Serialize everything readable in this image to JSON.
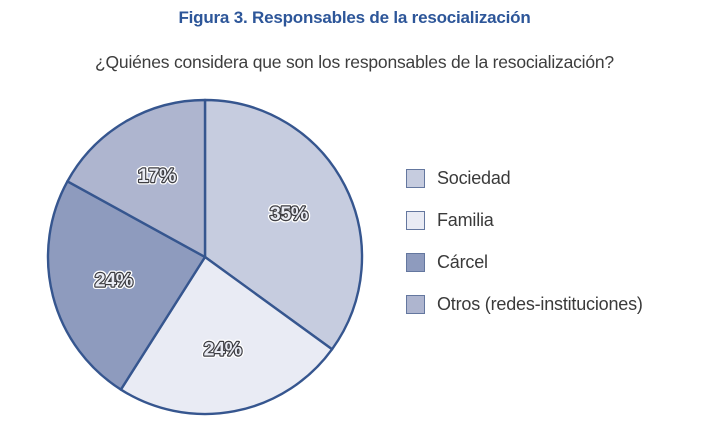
{
  "figure": {
    "title": "Figura 3. Responsables de la resocialización",
    "question": "¿Quiénes considera que son los responsables de la resocialización?"
  },
  "chart_data": {
    "type": "pie",
    "title": "Figura 3. Responsables de la resocialización",
    "subtitle": "¿Quiénes considera que son los responsables de la resocialización?",
    "categories": [
      "Sociedad",
      "Familia",
      "Cárcel",
      "Otros (redes-instituciones)"
    ],
    "values": [
      35,
      24,
      24,
      17
    ],
    "unit": "%",
    "data_labels": [
      "35%",
      "24%",
      "24%",
      "17%"
    ],
    "colors": [
      "#c6ccdf",
      "#e9ebf4",
      "#8e9bbe",
      "#aeb5cf"
    ],
    "slice_border_color": "#36568f",
    "start_angle_deg": 0,
    "direction": "clockwise",
    "legend_position": "right",
    "title_color": "#2d5699",
    "text_color": "#3d3d3d"
  },
  "legend": {
    "items": [
      {
        "label": "Sociedad",
        "color": "#c6ccdf"
      },
      {
        "label": "Familia",
        "color": "#e9ebf4"
      },
      {
        "label": "Cárcel",
        "color": "#8e9bbe"
      },
      {
        "label": "Otros (redes-instituciones)",
        "color": "#aeb5cf"
      }
    ]
  }
}
